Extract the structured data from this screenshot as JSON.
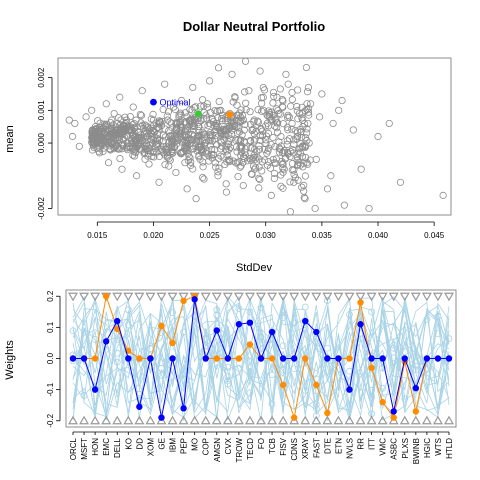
{
  "chart_data": [
    {
      "type": "scatter",
      "title": "Dollar Neutral Portfolio",
      "xlabel": "StdDev",
      "ylabel": "mean",
      "xlim": [
        0.0115,
        0.0465
      ],
      "ylim": [
        -0.0022,
        0.0026
      ],
      "xticks": [
        "0.015",
        "0.020",
        "0.025",
        "0.030",
        "0.035",
        "0.040",
        "0.045"
      ],
      "yticks": [
        "-0.002",
        "0.000",
        "0.001",
        "0.002"
      ],
      "grid": false,
      "cloud": {
        "description_values": "dense cloud of random portfolios, grey open circles",
        "color": "#8c8c8c",
        "points": [
          [
            0.0125,
            0.0007
          ],
          [
            0.013,
            0.0006
          ],
          [
            0.0128,
            0.0002
          ],
          [
            0.0134,
            -0.0001
          ],
          [
            0.014,
            0.0008
          ],
          [
            0.0145,
            0.001
          ],
          [
            0.015,
            0.0003
          ],
          [
            0.0152,
            -0.0003
          ],
          [
            0.0158,
            0.0012
          ],
          [
            0.016,
            -0.0006
          ],
          [
            0.0165,
            0.0009
          ],
          [
            0.017,
            0.0014
          ],
          [
            0.0172,
            -0.0008
          ],
          [
            0.0178,
            0.0004
          ],
          [
            0.0182,
            0.0011
          ],
          [
            0.0185,
            -0.001
          ],
          [
            0.019,
            0.0016
          ],
          [
            0.0195,
            -0.0004
          ],
          [
            0.02,
            0.0007
          ],
          [
            0.0205,
            -0.0012
          ],
          [
            0.021,
            0.0018
          ],
          [
            0.0215,
            0.0002
          ],
          [
            0.022,
            -0.0009
          ],
          [
            0.0225,
            0.0013
          ],
          [
            0.023,
            -0.0014
          ],
          [
            0.0235,
            0.0017
          ],
          [
            0.024,
            0.0005
          ],
          [
            0.0245,
            -0.0011
          ],
          [
            0.025,
            0.0019
          ],
          [
            0.0255,
            -0.0006
          ],
          [
            0.026,
            0.001
          ],
          [
            0.0265,
            -0.0015
          ],
          [
            0.027,
            0.0021
          ],
          [
            0.0275,
            0.0003
          ],
          [
            0.028,
            -0.0013
          ],
          [
            0.0285,
            0.0016
          ],
          [
            0.029,
            -0.0008
          ],
          [
            0.0295,
            0.0022
          ],
          [
            0.03,
            0.0001
          ],
          [
            0.0305,
            -0.0016
          ],
          [
            0.031,
            0.0014
          ],
          [
            0.0315,
            -0.0003
          ],
          [
            0.032,
            0.0018
          ],
          [
            0.0325,
            -0.0012
          ],
          [
            0.033,
            0.0009
          ],
          [
            0.0335,
            -0.0017
          ],
          [
            0.034,
            0.0012
          ],
          [
            0.0345,
            -0.0005
          ],
          [
            0.035,
            0.0015
          ],
          [
            0.0355,
            -0.0014
          ],
          [
            0.036,
            0.0006
          ],
          [
            0.0365,
            0.001
          ],
          [
            0.037,
            -0.0019
          ],
          [
            0.0378,
            0.0004
          ],
          [
            0.0385,
            -0.0008
          ],
          [
            0.0392,
            -0.002
          ],
          [
            0.04,
            0.0002
          ],
          [
            0.041,
            0.0006
          ],
          [
            0.042,
            -0.0012
          ],
          [
            0.0458,
            -0.0016
          ],
          [
            0.022,
            0.0004
          ],
          [
            0.023,
            0.0008
          ],
          [
            0.024,
            -0.0002
          ],
          [
            0.025,
            0.0006
          ],
          [
            0.026,
            -0.0004
          ],
          [
            0.0212,
            -0.0003
          ],
          [
            0.0228,
            -0.0006
          ],
          [
            0.0248,
            0.0012
          ],
          [
            0.0268,
            0.0009
          ],
          [
            0.0288,
            0.0004
          ],
          [
            0.0308,
            -0.0006
          ],
          [
            0.0328,
            0.0002
          ],
          [
            0.0348,
            0.0008
          ],
          [
            0.0298,
            0.001
          ],
          [
            0.0278,
            -0.0007
          ],
          [
            0.0198,
            0.0003
          ],
          [
            0.0188,
            -0.0002
          ],
          [
            0.0176,
            0.0007
          ],
          [
            0.0166,
            0.0001
          ],
          [
            0.0156,
            0.0005
          ],
          [
            0.0318,
            0.0021
          ],
          [
            0.0338,
            0.0017
          ],
          [
            0.0358,
            -0.001
          ],
          [
            0.0368,
            0.0013
          ],
          [
            0.0322,
            -0.0021
          ],
          [
            0.0344,
            -0.002
          ],
          [
            0.0282,
            0.0025
          ],
          [
            0.0258,
            0.0023
          ],
          [
            0.0238,
            -0.0017
          ],
          [
            0.0218,
            0.0011
          ]
        ]
      },
      "highlighted_points": [
        {
          "name": "Optimal",
          "x": 0.02,
          "y": 0.00125,
          "color": "#0000ff"
        },
        {
          "name": "",
          "x": 0.024,
          "y": 0.0009,
          "color": "#33cc33"
        },
        {
          "name": "",
          "x": 0.0268,
          "y": 0.00087,
          "color": "#ff8c00"
        }
      ]
    },
    {
      "type": "line",
      "title": "",
      "xlabel": "",
      "ylabel": "Weights",
      "ylim": [
        -0.22,
        0.22
      ],
      "yticks": [
        "-0.2",
        "-0.1",
        "0.0",
        "0.1",
        "0.2"
      ],
      "grid": false,
      "categories": [
        "ORCL",
        "MSFT",
        "HON",
        "EMC",
        "DELL",
        "KO",
        "DD",
        "XOM",
        "GE",
        "IBM",
        "PEP",
        "MO",
        "COP",
        "AMGN",
        "CVX",
        "TROW",
        "TECD",
        "FO",
        "TCB",
        "FISV",
        "CDNS",
        "XRAY",
        "FAST",
        "DTE",
        "ETN",
        "NVLS",
        "RR",
        "ITT",
        "VMC",
        "ASBC",
        "PLXS",
        "BWINB",
        "HGIC",
        "WTS",
        "HTLD"
      ],
      "bounds": {
        "upper": 0.2,
        "lower": -0.2,
        "color": "#999999"
      },
      "series": [
        {
          "name": "",
          "color": "#0000ff",
          "values": [
            0.0,
            0.0,
            -0.1,
            0.055,
            0.12,
            0.0,
            -0.155,
            0.0,
            -0.19,
            0.0,
            -0.16,
            0.19,
            0.0,
            0.09,
            0.0,
            0.11,
            0.115,
            0.0,
            0.085,
            0.0,
            0.0,
            0.12,
            0.085,
            0.0,
            0.0,
            -0.1,
            0.11,
            0.0,
            0.0,
            -0.17,
            0.0,
            -0.095,
            0.0,
            0.0,
            0.0
          ]
        },
        {
          "name": "",
          "color": "#ff8c00",
          "values": [
            0.0,
            0.0,
            0.0,
            0.2,
            0.095,
            0.025,
            0.0,
            0.0,
            0.105,
            0.05,
            0.185,
            0.2,
            0.0,
            0.0,
            0.0,
            0.0,
            0.045,
            0.0,
            0.0,
            -0.085,
            -0.19,
            0.0,
            -0.085,
            -0.175,
            0.0,
            0.0,
            0.18,
            -0.03,
            -0.14,
            -0.19,
            -0.01,
            -0.17,
            0.0,
            0.0,
            0.0
          ]
        }
      ]
    }
  ]
}
